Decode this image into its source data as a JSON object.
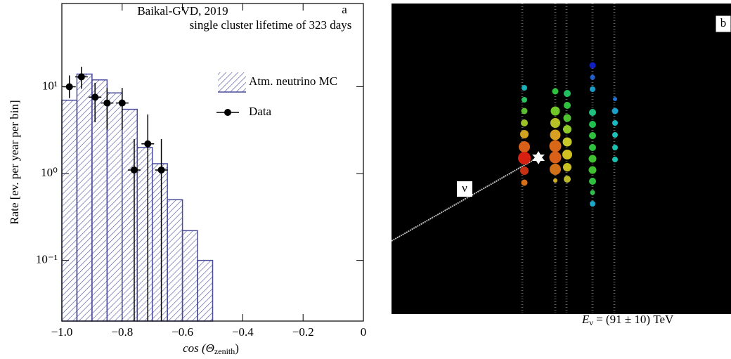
{
  "chart_data": {
    "type": "histogram",
    "y_label": "Rate [ev. per year per bin]",
    "x_label": {
      "text": "cos (Θ",
      "sub": "zenith",
      "close": ")"
    },
    "annotations": [
      "Baikal-GVD, 2019",
      "single cluster lifetime of 323 days",
      "a"
    ],
    "xlim": [
      -1,
      0
    ],
    "xticks": [
      {
        "value": -1,
        "label": "−1.0"
      },
      {
        "value": -0.8,
        "label": "−0.8"
      },
      {
        "value": -0.6,
        "label": "−0.6"
      },
      {
        "value": -0.4,
        "label": "−0.4"
      },
      {
        "value": -0.2,
        "label": "−0.2"
      },
      0
    ],
    "ylim": [
      0.02,
      91
    ],
    "yticks": [
      {
        "value": 10,
        "label": "10¹"
      },
      {
        "value": 1,
        "label": "10⁰"
      },
      {
        "value": 0.1,
        "label": "10⁻¹"
      }
    ],
    "log_y": true,
    "bins": [
      -1,
      -0.95,
      -0.9,
      -0.85,
      -0.8,
      -0.75,
      -0.7,
      -0.65,
      -0.6,
      -0.55,
      -0.5
    ],
    "series": [
      {
        "name": "Atm. neutrino MC",
        "color": "#4b4c9c",
        "values": [
          7,
          14,
          12,
          8.5,
          5.5,
          2.0,
          1.3,
          0.5,
          0.22,
          0.1
        ]
      },
      {
        "name": "Data",
        "color": "#000000",
        "x": [
          -0.975,
          -0.935,
          -0.89,
          -0.85,
          -0.8,
          -0.76,
          -0.715,
          -0.67
        ],
        "values": [
          10,
          13,
          7.6,
          6.5,
          6.5,
          1.1,
          2.2,
          1.1
        ],
        "yerr_low": [
          2.6,
          3.5,
          3.7,
          3.3,
          3.3,
          1.1,
          2.2,
          1.1
        ],
        "yerr_high": [
          3.5,
          4,
          3.5,
          3.2,
          3.2,
          1.4,
          2.6,
          1.4
        ]
      }
    ]
  },
  "panel_b": {
    "label": "b",
    "track_label": "ν",
    "energy": {
      "symbol": "E",
      "sub": "ν",
      "rest": " = (91 ± 10) TeV"
    }
  }
}
